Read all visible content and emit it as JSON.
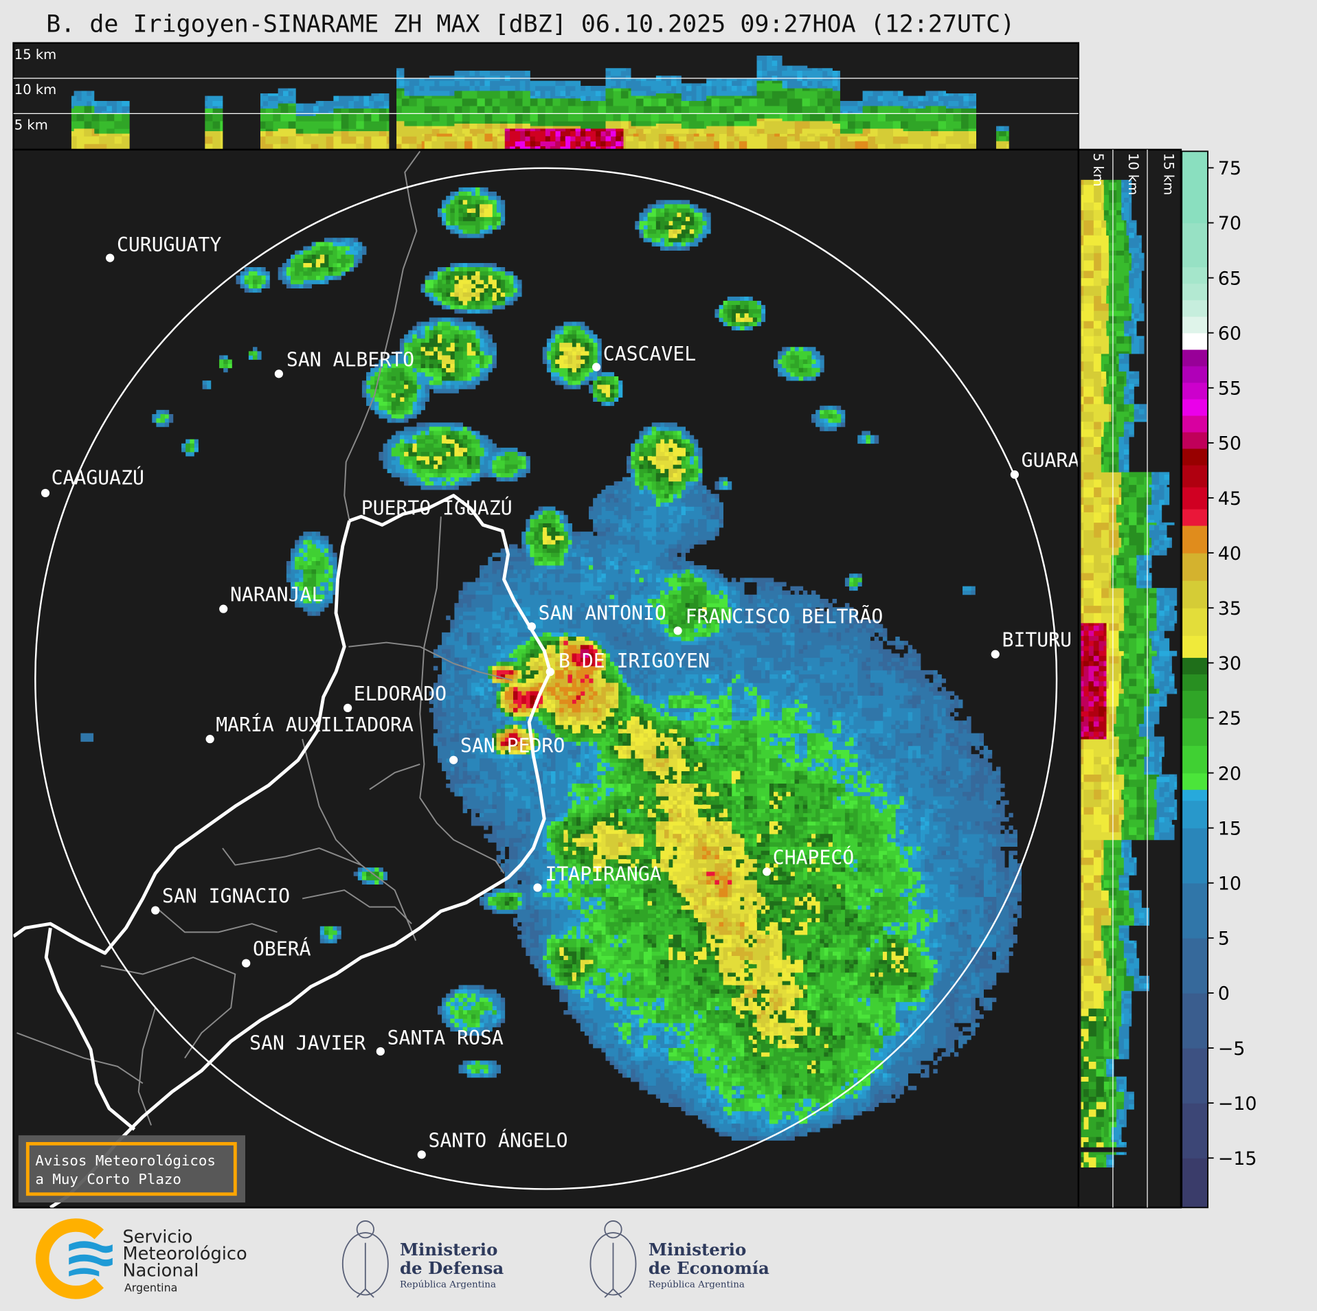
{
  "title": "B. de Irigoyen-SINARAME ZH MAX [dBZ] 06.10.2025 09:27HOA (12:27UTC)",
  "top_panel": {
    "labels": [
      "15 km",
      "10 km",
      "5 km"
    ]
  },
  "side_panel": {
    "labels": [
      "5 km",
      "10 km",
      "15 km"
    ]
  },
  "map": {
    "cities": [
      {
        "name": "CURUGUATY"
      },
      {
        "name": "SAN ALBERTO"
      },
      {
        "name": "CASCAVEL"
      },
      {
        "name": "CAAGUAZÚ"
      },
      {
        "name": "GUARA"
      },
      {
        "name": "PUERTO IGUAZÚ"
      },
      {
        "name": "NARANJAL"
      },
      {
        "name": "SAN ANTONIO"
      },
      {
        "name": "FRANCISCO BELTRÃO"
      },
      {
        "name": "BITURU"
      },
      {
        "name": "B  DE IRIGOYEN"
      },
      {
        "name": "ELDORADO"
      },
      {
        "name": "MARÍA AUXILIADORA"
      },
      {
        "name": "SAN PEDRO"
      },
      {
        "name": "ITAPIRANGA"
      },
      {
        "name": "CHAPECÓ"
      },
      {
        "name": "SAN IGNACIO"
      },
      {
        "name": "OBERÁ"
      },
      {
        "name": "SAN JAVIER"
      },
      {
        "name": "SANTA ROSA"
      },
      {
        "name": "SANTO ÁNGELO"
      }
    ],
    "range_ring": true
  },
  "warning_box": {
    "line1": "Avisos Meteorológicos",
    "line2": "a Muy Corto Plazo",
    "border_color": "#ffa500"
  },
  "colorbar": {
    "unit": "dBZ",
    "range": [
      -19.5,
      76.5
    ],
    "ticks": [
      "75",
      "70",
      "65",
      "60",
      "55",
      "50",
      "45",
      "40",
      "35",
      "30",
      "25",
      "20",
      "15",
      "10",
      "5",
      "0",
      "−5",
      "−10",
      "−15"
    ],
    "tick_values": [
      75,
      70,
      65,
      60,
      55,
      50,
      45,
      40,
      35,
      30,
      25,
      20,
      15,
      10,
      5,
      0,
      -5,
      -10,
      -15
    ],
    "segments": [
      [
        -19.5,
        -15,
        "#3a3c6a"
      ],
      [
        -15,
        -10,
        "#3c4676"
      ],
      [
        -10,
        -5,
        "#3d5182"
      ],
      [
        -5,
        0,
        "#3a5d8e"
      ],
      [
        0,
        5,
        "#36699b"
      ],
      [
        5,
        10,
        "#3076a9"
      ],
      [
        10,
        15,
        "#2a86ba"
      ],
      [
        15,
        17.5,
        "#2898cb"
      ],
      [
        17.5,
        18.5,
        "#27a9dc"
      ],
      [
        18.5,
        20,
        "#4be53a"
      ],
      [
        20,
        22.5,
        "#40d033"
      ],
      [
        22.5,
        25,
        "#38bb2d"
      ],
      [
        25,
        27.5,
        "#30a527"
      ],
      [
        27.5,
        29,
        "#288f21"
      ],
      [
        29,
        30.5,
        "#1f6f1a"
      ],
      [
        30.5,
        32.5,
        "#f0ea3a"
      ],
      [
        32.5,
        35,
        "#e3dd3a"
      ],
      [
        35,
        37.5,
        "#d5cc36"
      ],
      [
        37.5,
        40,
        "#d4b22e"
      ],
      [
        40,
        42.5,
        "#e08c1c"
      ],
      [
        42.5,
        44,
        "#ea1739"
      ],
      [
        44,
        46,
        "#d00022"
      ],
      [
        46,
        48,
        "#b00010"
      ],
      [
        48,
        49.5,
        "#980000"
      ],
      [
        49.5,
        51,
        "#c0005a"
      ],
      [
        51,
        52.5,
        "#d800a0"
      ],
      [
        52.5,
        54,
        "#ea00ea"
      ],
      [
        54,
        55.5,
        "#cc00cc"
      ],
      [
        55.5,
        57,
        "#b000b8"
      ],
      [
        57,
        58.5,
        "#980098"
      ],
      [
        58.5,
        60,
        "#ffffff"
      ],
      [
        60,
        61.5,
        "#dff4ea"
      ],
      [
        61.5,
        63,
        "#c6eedd"
      ],
      [
        63,
        64.5,
        "#b3e9d2"
      ],
      [
        64.5,
        66,
        "#a5e6cb"
      ],
      [
        66,
        70,
        "#97e1c4"
      ],
      [
        70,
        76.5,
        "#8adfbf"
      ]
    ]
  },
  "logos": {
    "smn": {
      "lines": [
        "Servicio",
        "Meteorológico",
        "Nacional",
        "Argentina"
      ],
      "colors": [
        "#ffb000",
        "#1e9ad6"
      ]
    },
    "defensa": {
      "lines": [
        "Ministerio",
        "de Defensa",
        "República Argentina"
      ],
      "color": "#2e3a5c"
    },
    "economia": {
      "lines": [
        "Ministerio",
        "de Economía",
        "República Argentina"
      ],
      "color": "#2e3a5c"
    }
  }
}
